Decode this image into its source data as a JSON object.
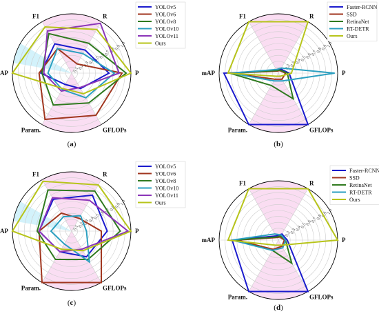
{
  "colors": {
    "YOLOv5": "#1a1acd",
    "YOLOv6": "#a0361f",
    "YOLOv8": "#2f7a1f",
    "YOLOv10": "#2b9fc0",
    "YOLOv11": "#8b35b8",
    "Ours": "#b7c41a",
    "Faster-RCNN": "#1a1acd",
    "SSD": "#a0361f",
    "RetinaNet": "#2f7a1f",
    "RT-DETR": "#2b9fc0",
    "grid": "#cccccc",
    "highlight_pink": "#f4b6e4",
    "highlight_cyan": "#9fe3f7"
  },
  "chart_data": [
    {
      "type": "radar",
      "caption_letter": "a",
      "axes": [
        "R",
        "P",
        "GFLOPs",
        "Param.",
        "mAP",
        "F1"
      ],
      "ticks": [
        "0.1",
        "0.2",
        "0.3",
        "0.4",
        "0.5",
        "0.6",
        "0.7",
        "0.8",
        "0.9",
        "1.0"
      ],
      "rlim": [
        0,
        1
      ],
      "legend": [
        "YOLOv5",
        "YOLOv6",
        "YOLOv8",
        "YOLOv10",
        "YOLOv11",
        "Ours"
      ],
      "series": [
        {
          "name": "YOLOv5",
          "values": [
            0.45,
            0.63,
            0.3,
            0.22,
            0.52,
            0.57
          ]
        },
        {
          "name": "YOLOv6",
          "values": [
            0.18,
            0.85,
            0.82,
            0.9,
            0.55,
            0.48
          ]
        },
        {
          "name": "YOLOv8",
          "values": [
            0.58,
            0.92,
            0.58,
            0.62,
            0.5,
            0.77
          ]
        },
        {
          "name": "YOLOv10",
          "values": [
            0.38,
            0.72,
            0.48,
            0.32,
            0.4,
            0.48
          ]
        },
        {
          "name": "YOLOv11",
          "values": [
            0.97,
            0.8,
            0.28,
            0.35,
            0.47,
            0.82
          ]
        },
        {
          "name": "Ours",
          "values": [
            0.85,
            1.0,
            0.4,
            0.3,
            1.0,
            0.9
          ]
        }
      ]
    },
    {
      "type": "radar",
      "caption_letter": "b",
      "axes": [
        "R",
        "P",
        "GFLOPs",
        "Param.",
        "mAP",
        "F1"
      ],
      "ticks": [
        "0.1",
        "0.2",
        "0.3",
        "0.4",
        "0.5",
        "0.6",
        "0.7",
        "0.8",
        "0.9",
        "1.0"
      ],
      "rlim": [
        0,
        1
      ],
      "legend": [
        "Faster-RCNN",
        "SSD",
        "RetinaNet",
        "RT-DETR",
        "Ours"
      ],
      "series": [
        {
          "name": "Faster-RCNN",
          "values": [
            0.08,
            0.18,
            1.0,
            1.0,
            0.92,
            0.05
          ]
        },
        {
          "name": "SSD",
          "values": [
            0.05,
            0.12,
            0.12,
            0.12,
            0.8,
            0.04
          ]
        },
        {
          "name": "RetinaNet",
          "values": [
            0.06,
            0.15,
            0.5,
            0.24,
            0.82,
            0.05
          ]
        },
        {
          "name": "RT-DETR",
          "values": [
            0.1,
            0.95,
            0.15,
            0.15,
            0.8,
            0.07
          ]
        },
        {
          "name": "Ours",
          "values": [
            1.0,
            0.22,
            0.06,
            0.06,
            0.85,
            1.0
          ]
        }
      ]
    },
    {
      "type": "radar",
      "caption_letter": "c",
      "axes": [
        "R",
        "P",
        "GFLOPs",
        "Param.",
        "mAP",
        "F1"
      ],
      "ticks": [
        "0.1",
        "0.2",
        "0.3",
        "0.4",
        "0.5",
        "0.6",
        "0.7",
        "0.8",
        "0.9",
        "1.0"
      ],
      "rlim": [
        0,
        1
      ],
      "legend": [
        "YOLOv5",
        "YOLOv6",
        "YOLOv8",
        "YOLOv10",
        "YOLOv11",
        "Ours"
      ],
      "series": [
        {
          "name": "YOLOv5",
          "values": [
            0.7,
            0.6,
            0.5,
            0.4,
            0.55,
            0.62
          ]
        },
        {
          "name": "YOLOv6",
          "values": [
            0.25,
            0.5,
            1.0,
            1.0,
            0.55,
            0.35
          ]
        },
        {
          "name": "YOLOv8",
          "values": [
            0.78,
            0.82,
            0.55,
            0.55,
            0.58,
            0.8
          ]
        },
        {
          "name": "YOLOv10",
          "values": [
            0.3,
            0.25,
            0.6,
            0.25,
            0.35,
            0.28
          ]
        },
        {
          "name": "YOLOv11",
          "values": [
            0.6,
            0.95,
            0.35,
            0.4,
            0.55,
            0.65
          ]
        },
        {
          "name": "Ours",
          "values": [
            0.9,
            1.0,
            0.38,
            0.35,
            1.0,
            0.97
          ]
        }
      ]
    },
    {
      "type": "radar",
      "caption_letter": "d",
      "axes": [
        "R",
        "P",
        "GFLOPs",
        "Param.",
        "mAP",
        "F1"
      ],
      "ticks": [
        "0.1",
        "0.2",
        "0.3",
        "0.4",
        "0.5",
        "0.6",
        "0.7",
        "0.8",
        "0.9",
        "1.0"
      ],
      "rlim": [
        0,
        1
      ],
      "legend": [
        "Faster-RCNN",
        "SSD",
        "RetinaNet",
        "RT-DETR",
        "Ours"
      ],
      "series": [
        {
          "name": "Faster-RCNN",
          "values": [
            0.12,
            0.15,
            1.0,
            1.0,
            0.78,
            0.08
          ]
        },
        {
          "name": "SSD",
          "values": [
            0.06,
            0.1,
            0.12,
            0.18,
            0.7,
            0.05
          ]
        },
        {
          "name": "RetinaNet",
          "values": [
            0.08,
            0.12,
            0.45,
            0.2,
            0.75,
            0.06
          ]
        },
        {
          "name": "RT-DETR",
          "values": [
            0.1,
            0.12,
            0.15,
            0.2,
            0.78,
            0.12
          ]
        },
        {
          "name": "Ours",
          "values": [
            1.0,
            1.0,
            0.1,
            0.1,
            0.85,
            1.0
          ]
        }
      ]
    }
  ]
}
